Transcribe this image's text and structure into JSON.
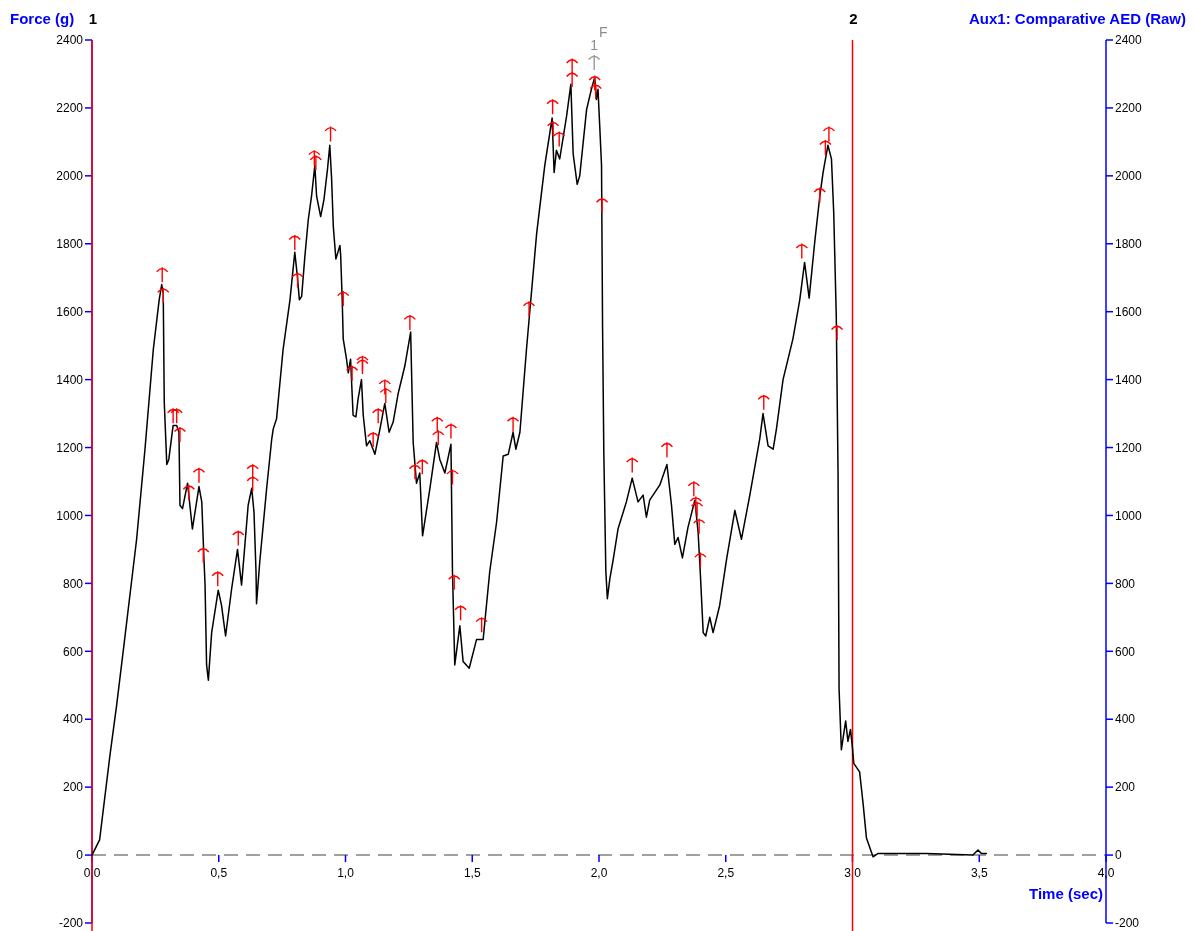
{
  "chart_data": {
    "type": "line",
    "xlabel": "Time (sec)",
    "ylabel": "Force (g)",
    "y2label": "Aux1: Comparative AED (Raw)",
    "xlim": [
      0,
      4
    ],
    "xticks": [
      {
        "value": 0,
        "label": "0,0"
      },
      {
        "value": 0.5,
        "label": "0,5"
      },
      {
        "value": 1,
        "label": "1,0"
      },
      {
        "value": 1.5,
        "label": "1,5"
      },
      {
        "value": 2,
        "label": "2,0"
      },
      {
        "value": 2.5,
        "label": "2,5"
      },
      {
        "value": 3,
        "label": "3,0"
      },
      {
        "value": 3.5,
        "label": "3,5"
      },
      {
        "value": 4,
        "label": "4,0"
      }
    ],
    "ylim": [
      -200,
      2400
    ],
    "yticks": [
      -200,
      0,
      200,
      400,
      600,
      800,
      1000,
      1200,
      1400,
      1600,
      1800,
      2000,
      2200,
      2400
    ],
    "y2lim": [
      -200,
      2400
    ],
    "y2ticks": [
      -200,
      0,
      200,
      400,
      600,
      800,
      1000,
      1200,
      1400,
      1600,
      1800,
      2000,
      2200,
      2400
    ],
    "ref_lines": [
      {
        "axis": "y",
        "value": 0,
        "color": "#a0a0a0",
        "line_style": "dashed"
      },
      {
        "axis": "x",
        "value": 0,
        "color": "#ff0000"
      },
      {
        "axis": "x",
        "value": 3.0,
        "color": "#ff0000"
      }
    ],
    "series": [
      {
        "type": "line",
        "color": "#000000",
        "x": [
          0,
          0.03,
          0.071,
          0.097,
          0.123,
          0.176,
          0.209,
          0.242,
          0.265,
          0.275,
          0.281,
          0.285,
          0.295,
          0.303,
          0.32,
          0.334,
          0.343,
          0.347,
          0.357,
          0.377,
          0.396,
          0.422,
          0.433,
          0.442,
          0.446,
          0.452,
          0.459,
          0.472,
          0.498,
          0.511,
          0.527,
          0.551,
          0.574,
          0.59,
          0.616,
          0.63,
          0.639,
          0.647,
          0.649,
          0.662,
          0.689,
          0.709,
          0.715,
          0.728,
          0.754,
          0.781,
          0.8,
          0.81,
          0.818,
          0.827,
          0.84,
          0.853,
          0.866,
          0.879,
          0.886,
          0.902,
          0.915,
          0.929,
          0.938,
          0.945,
          0.952,
          0.962,
          0.978,
          0.981,
          0.987,
          0.991,
          1.004,
          1.011,
          1.02,
          1.03,
          1.041,
          1.05,
          1.063,
          1.07,
          1.083,
          1.096,
          1.116,
          1.136,
          1.155,
          1.172,
          1.188,
          1.208,
          1.234,
          1.257,
          1.267,
          1.28,
          1.293,
          1.304,
          1.333,
          1.359,
          1.372,
          1.392,
          1.416,
          1.422,
          1.431,
          1.451,
          1.464,
          1.488,
          1.517,
          1.543,
          1.569,
          1.596,
          1.622,
          1.642,
          1.661,
          1.672,
          1.688,
          1.714,
          1.754,
          1.786,
          1.815,
          1.823,
          1.832,
          1.845,
          1.872,
          1.889,
          1.898,
          1.914,
          1.924,
          1.951,
          1.97,
          1.983,
          1.99,
          1.996,
          2.003,
          2.01,
          2.014,
          2.019,
          2.027,
          2.033,
          2.043,
          2.056,
          2.075,
          2.108,
          2.131,
          2.154,
          2.174,
          2.187,
          2.2,
          2.24,
          2.268,
          2.286,
          2.299,
          2.312,
          2.329,
          2.351,
          2.378,
          2.391,
          2.4,
          2.411,
          2.421,
          2.437,
          2.45,
          2.476,
          2.503,
          2.536,
          2.562,
          2.595,
          2.634,
          2.647,
          2.667,
          2.687,
          2.7,
          2.726,
          2.765,
          2.792,
          2.811,
          2.829,
          2.851,
          2.871,
          2.884,
          2.903,
          2.917,
          2.926,
          2.936,
          2.943,
          2.947,
          2.956,
          2.973,
          2.982,
          2.992,
          3.0,
          3.005,
          3.028,
          3.042,
          3.055,
          3.081,
          3.101,
          3.291,
          3.475,
          3.495,
          3.508,
          3.528
        ],
        "values": [
          0,
          45,
          295,
          440,
          600,
          930,
          1195,
          1490,
          1635,
          1680,
          1655,
          1335,
          1150,
          1165,
          1265,
          1265,
          1245,
          1030,
          1020,
          1095,
          960,
          1085,
          1040,
          865,
          795,
          560,
          515,
          655,
          780,
          735,
          645,
          785,
          900,
          795,
          1030,
          1080,
          1010,
          835,
          740,
          865,
          1080,
          1225,
          1255,
          1285,
          1490,
          1635,
          1775,
          1705,
          1635,
          1645,
          1765,
          1870,
          1940,
          2030,
          1940,
          1880,
          1930,
          2020,
          2090,
          1995,
          1850,
          1755,
          1795,
          1765,
          1635,
          1520,
          1460,
          1420,
          1460,
          1295,
          1290,
          1345,
          1400,
          1295,
          1205,
          1220,
          1180,
          1255,
          1330,
          1245,
          1275,
          1360,
          1440,
          1540,
          1215,
          1095,
          1125,
          940,
          1080,
          1215,
          1165,
          1125,
          1210,
          835,
          560,
          675,
          570,
          550,
          635,
          635,
          835,
          980,
          1175,
          1180,
          1245,
          1195,
          1245,
          1490,
          1830,
          2030,
          2170,
          2010,
          2075,
          2050,
          2175,
          2270,
          2065,
          1975,
          2000,
          2195,
          2255,
          2290,
          2225,
          2255,
          2145,
          2030,
          1560,
          1185,
          835,
          755,
          815,
          870,
          960,
          1040,
          1110,
          1040,
          1060,
          995,
          1045,
          1090,
          1150,
          1030,
          915,
          935,
          875,
          965,
          1045,
          950,
          825,
          655,
          645,
          700,
          655,
          735,
          870,
          1015,
          930,
          1060,
          1225,
          1300,
          1205,
          1195,
          1255,
          1400,
          1520,
          1635,
          1745,
          1640,
          1805,
          1940,
          2010,
          2090,
          2050,
          1890,
          1585,
          1125,
          490,
          310,
          395,
          335,
          370,
          315,
          270,
          245,
          150,
          50,
          -5,
          5,
          5,
          0,
          15,
          5,
          5
        ]
      },
      {
        "type": "scatter",
        "color": "#ff0000",
        "marker": "cross",
        "x": [
          0.277,
          0.281,
          0.32,
          0.334,
          0.347,
          0.382,
          0.422,
          0.439,
          0.496,
          0.577,
          0.634,
          0.634,
          0.8,
          0.811,
          0.877,
          0.883,
          0.941,
          0.991,
          1.026,
          1.067,
          1.067,
          1.109,
          1.129,
          1.155,
          1.159,
          1.254,
          1.274,
          1.303,
          1.362,
          1.366,
          1.416,
          1.422,
          1.429,
          1.454,
          1.537,
          1.661,
          1.724,
          1.817,
          1.819,
          1.843,
          1.894,
          1.894,
          1.983,
          1.987,
          2.012,
          2.131,
          2.268,
          2.374,
          2.382,
          2.387,
          2.395,
          2.4,
          2.65,
          2.8,
          2.871,
          2.893,
          2.907,
          2.939
        ],
        "values": [
          1710,
          1650,
          1295,
          1295,
          1240,
          1070,
          1120,
          885,
          815,
          935,
          1130,
          1095,
          1805,
          1695,
          2055,
          2040,
          2125,
          1640,
          1420,
          1450,
          1440,
          1225,
          1295,
          1380,
          1355,
          1570,
          1130,
          1145,
          1270,
          1230,
          1250,
          1115,
          805,
          715,
          680,
          1270,
          1610,
          2205,
          2140,
          2110,
          2325,
          2285,
          2275,
          2250,
          1915,
          1150,
          1195,
          1080,
          1035,
          1020,
          970,
          870,
          1335,
          1780,
          1945,
          2085,
          2125,
          1540
        ]
      },
      {
        "type": "scatter",
        "color": "#999999",
        "marker": "cross",
        "x": [
          1.981
        ],
        "values": [
          2335
        ]
      }
    ],
    "annotations": [
      {
        "text": "1",
        "x": 0,
        "y": 2400
      },
      {
        "text": "1",
        "x": 1.981,
        "y": 2335
      },
      {
        "text": "F",
        "x": 1.981,
        "y": 2335
      },
      {
        "text": "2",
        "x": 3.0,
        "y": 2400
      }
    ]
  }
}
